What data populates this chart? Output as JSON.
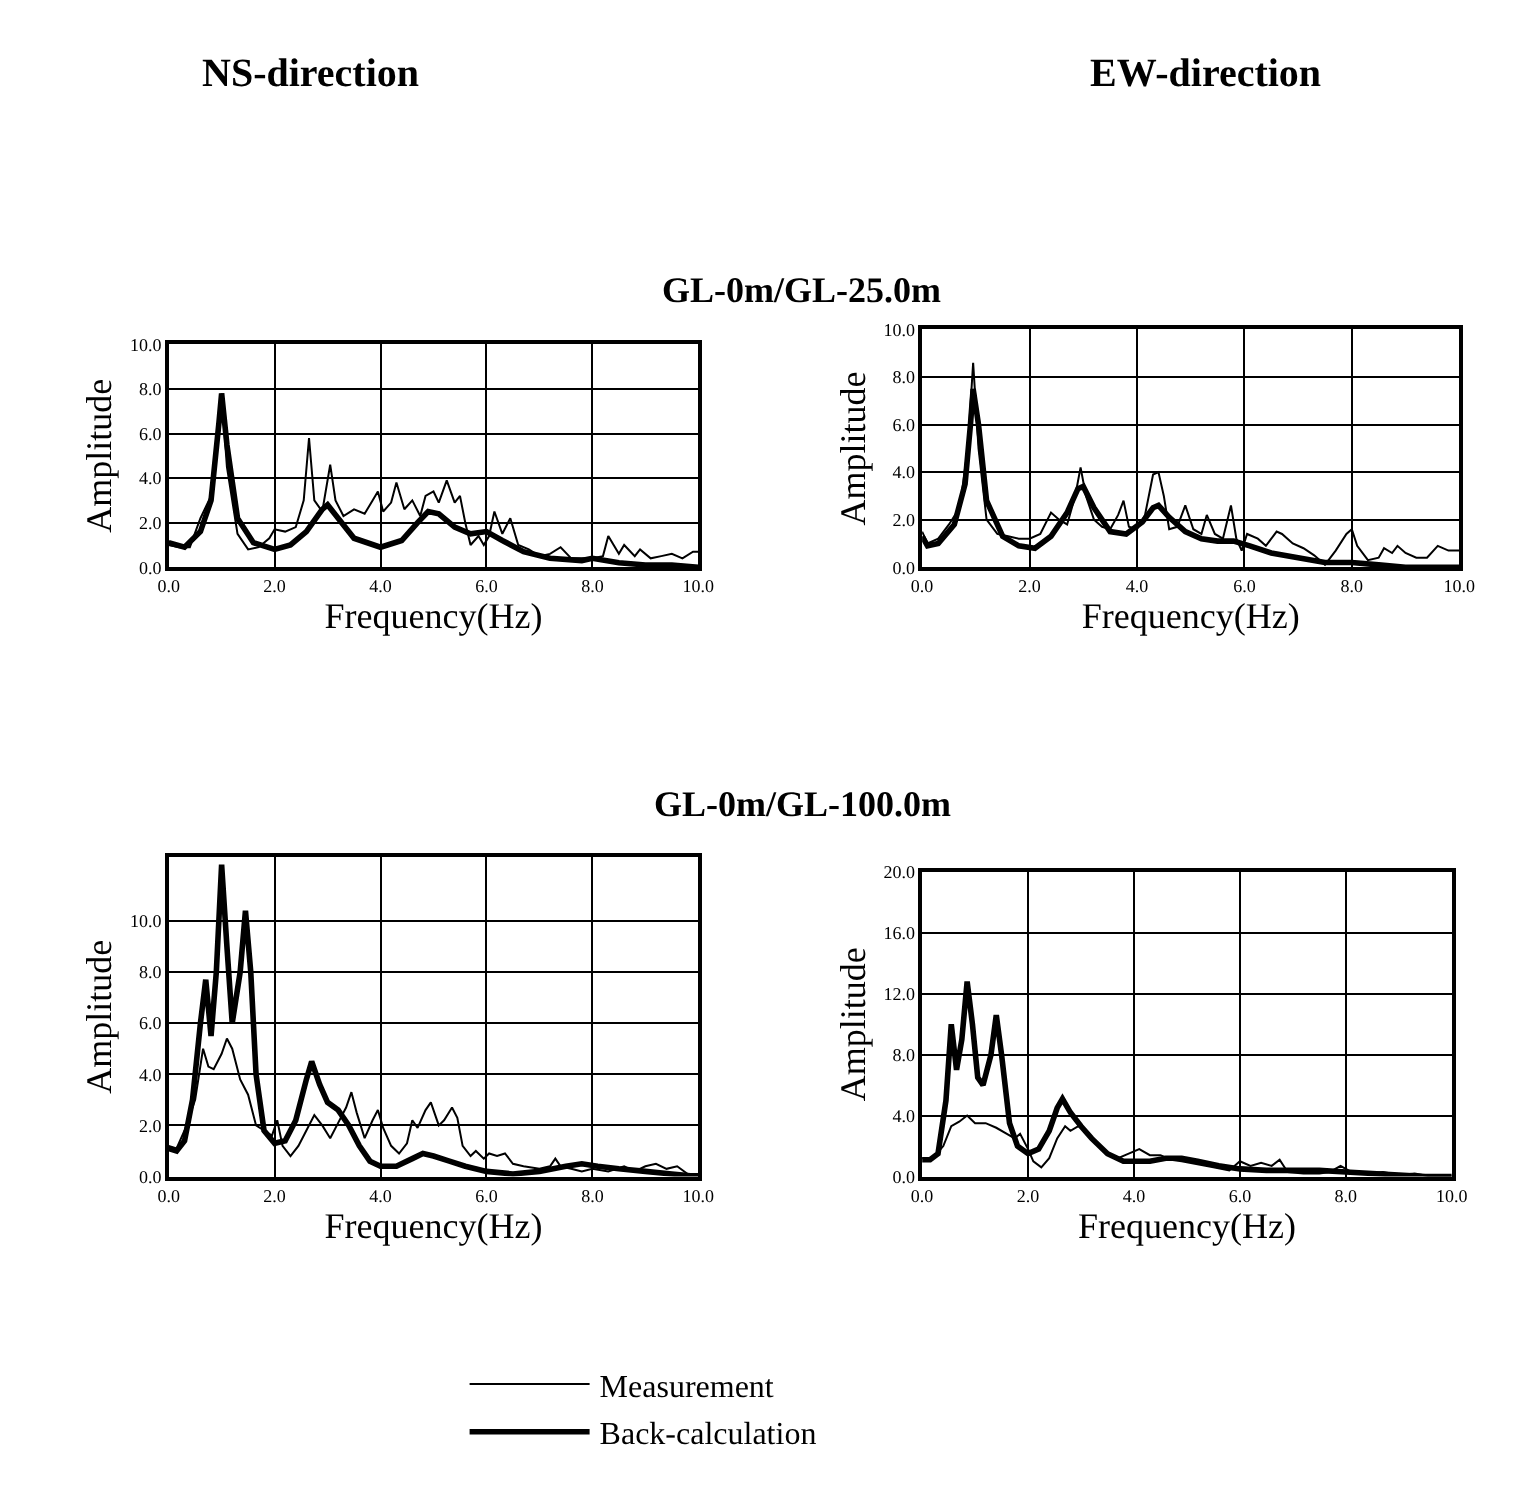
{
  "chart_data": [
    {
      "type": "line",
      "title": "GL-0m/GL-25.0m",
      "annotations": [
        "NS-direction"
      ],
      "xlabel": "Frequency(Hz)",
      "ylabel": "Amplitude",
      "xlim": [
        0,
        10
      ],
      "ylim": [
        0,
        10
      ],
      "xticks": [
        {
          "value": 0,
          "label": "0.0"
        },
        {
          "value": 2,
          "label": "2.0"
        },
        {
          "value": 4,
          "label": "4.0"
        },
        {
          "value": 6,
          "label": "6.0"
        },
        {
          "value": 8,
          "label": "8.0"
        },
        {
          "value": 10,
          "label": "10.0"
        }
      ],
      "yticks": [
        {
          "value": 0,
          "label": "0.0"
        },
        {
          "value": 2,
          "label": "2.0"
        },
        {
          "value": 4,
          "label": "4.0"
        },
        {
          "value": 6,
          "label": "6.0"
        },
        {
          "value": 8,
          "label": "8.0"
        },
        {
          "value": 10,
          "label": "10.0"
        }
      ],
      "grid": true,
      "legend": "bottom",
      "marker": "none",
      "line_style": "solid",
      "series": [
        {
          "name": "Measurement",
          "color": "#000000",
          "x": [
            0.0,
            0.2,
            0.4,
            0.6,
            0.8,
            0.95,
            1.0,
            1.1,
            1.3,
            1.5,
            1.7,
            1.9,
            2.0,
            2.2,
            2.4,
            2.55,
            2.65,
            2.75,
            2.9,
            3.05,
            3.15,
            3.3,
            3.5,
            3.7,
            3.85,
            3.95,
            4.05,
            4.2,
            4.3,
            4.45,
            4.6,
            4.75,
            4.85,
            5.0,
            5.1,
            5.25,
            5.4,
            5.5,
            5.6,
            5.7,
            5.85,
            5.95,
            6.05,
            6.15,
            6.3,
            6.45,
            6.6,
            6.8,
            7.0,
            7.2,
            7.4,
            7.6,
            7.8,
            8.0,
            8.2,
            8.3,
            8.5,
            8.6,
            8.8,
            8.9,
            9.1,
            9.3,
            9.5,
            9.7,
            9.9,
            10.0
          ],
          "values": [
            1.0,
            0.9,
            0.9,
            2.2,
            3.2,
            6.0,
            7.8,
            4.5,
            1.5,
            0.8,
            0.9,
            1.3,
            1.7,
            1.6,
            1.8,
            3.0,
            5.8,
            3.0,
            2.5,
            4.6,
            3.0,
            2.3,
            2.6,
            2.4,
            3.0,
            3.4,
            2.5,
            2.9,
            3.8,
            2.6,
            3.0,
            2.3,
            3.2,
            3.4,
            2.9,
            3.9,
            2.9,
            3.2,
            2.0,
            1.0,
            1.4,
            1.0,
            1.4,
            2.5,
            1.5,
            2.2,
            1.0,
            0.8,
            0.5,
            0.6,
            0.9,
            0.4,
            0.4,
            0.4,
            0.5,
            1.4,
            0.6,
            1.0,
            0.5,
            0.8,
            0.4,
            0.5,
            0.6,
            0.4,
            0.7,
            0.7
          ]
        },
        {
          "name": "Back-calculation",
          "color": "#000000",
          "x": [
            0.0,
            0.3,
            0.6,
            0.8,
            0.95,
            1.0,
            1.1,
            1.3,
            1.6,
            2.0,
            2.3,
            2.6,
            2.9,
            3.0,
            3.2,
            3.5,
            4.0,
            4.4,
            4.7,
            4.9,
            5.1,
            5.4,
            5.7,
            6.0,
            6.3,
            6.7,
            7.2,
            7.8,
            8.0,
            8.5,
            9.0,
            9.5,
            10.0
          ],
          "values": [
            1.1,
            0.9,
            1.6,
            3.0,
            6.5,
            7.8,
            5.5,
            2.2,
            1.1,
            0.8,
            1.0,
            1.6,
            2.6,
            2.8,
            2.2,
            1.3,
            0.9,
            1.2,
            2.0,
            2.5,
            2.4,
            1.8,
            1.5,
            1.6,
            1.2,
            0.7,
            0.4,
            0.3,
            0.4,
            0.2,
            0.1,
            0.1,
            0.0
          ]
        }
      ]
    },
    {
      "type": "line",
      "annotations": [
        "EW-direction"
      ],
      "xlabel": "Frequency(Hz)",
      "ylabel": "Amplitude",
      "xlim": [
        0,
        10
      ],
      "ylim": [
        0,
        10
      ],
      "xticks": [
        {
          "value": 0,
          "label": "0.0"
        },
        {
          "value": 2,
          "label": "2.0"
        },
        {
          "value": 4,
          "label": "4.0"
        },
        {
          "value": 6,
          "label": "6.0"
        },
        {
          "value": 8,
          "label": "8.0"
        },
        {
          "value": 10,
          "label": "10.0"
        }
      ],
      "yticks": [
        {
          "value": 0,
          "label": "0.0"
        },
        {
          "value": 2,
          "label": "2.0"
        },
        {
          "value": 4,
          "label": "4.0"
        },
        {
          "value": 6,
          "label": "6.0"
        },
        {
          "value": 8,
          "label": "8.0"
        },
        {
          "value": 10,
          "label": "10.0"
        }
      ],
      "grid": true,
      "marker": "none",
      "line_style": "solid",
      "series": [
        {
          "color": "#000000",
          "x": [
            0.0,
            0.1,
            0.3,
            0.5,
            0.7,
            0.85,
            0.95,
            1.05,
            1.2,
            1.4,
            1.6,
            1.8,
            2.0,
            2.2,
            2.4,
            2.55,
            2.7,
            2.85,
            2.95,
            3.05,
            3.2,
            3.35,
            3.5,
            3.65,
            3.75,
            3.85,
            4.0,
            4.15,
            4.3,
            4.4,
            4.5,
            4.6,
            4.75,
            4.9,
            5.05,
            5.2,
            5.3,
            5.45,
            5.6,
            5.75,
            5.85,
            5.95,
            6.05,
            6.25,
            6.4,
            6.6,
            6.7,
            6.9,
            7.1,
            7.3,
            7.5,
            7.7,
            7.9,
            8.0,
            8.1,
            8.3,
            8.5,
            8.6,
            8.75,
            8.85,
            9.0,
            9.2,
            9.4,
            9.6,
            9.8,
            10.0
          ],
          "values": [
            1.5,
            1.0,
            1.2,
            1.8,
            2.5,
            5.0,
            8.6,
            5.0,
            2.0,
            1.4,
            1.3,
            1.2,
            1.2,
            1.4,
            2.3,
            2.0,
            1.8,
            3.0,
            4.2,
            3.0,
            2.0,
            1.7,
            1.6,
            2.2,
            2.8,
            1.7,
            1.6,
            2.2,
            3.9,
            4.0,
            3.0,
            1.6,
            1.7,
            2.6,
            1.6,
            1.4,
            2.2,
            1.4,
            1.2,
            2.6,
            1.2,
            0.7,
            1.4,
            1.2,
            0.9,
            1.5,
            1.4,
            1.0,
            0.8,
            0.5,
            0.1,
            0.7,
            1.4,
            1.6,
            0.9,
            0.3,
            0.4,
            0.8,
            0.6,
            0.9,
            0.6,
            0.4,
            0.4,
            0.9,
            0.7,
            0.7
          ]
        },
        {
          "color": "#000000",
          "x": [
            0.0,
            0.1,
            0.3,
            0.6,
            0.8,
            0.9,
            0.95,
            1.05,
            1.2,
            1.5,
            1.8,
            2.1,
            2.4,
            2.7,
            2.9,
            3.0,
            3.2,
            3.5,
            3.8,
            4.1,
            4.3,
            4.4,
            4.6,
            4.9,
            5.2,
            5.5,
            5.8,
            6.1,
            6.5,
            7.0,
            7.5,
            8.0,
            8.5,
            9.0,
            9.5,
            10.0
          ],
          "values": [
            1.3,
            0.9,
            1.0,
            1.8,
            3.5,
            6.0,
            7.5,
            6.0,
            2.8,
            1.3,
            0.9,
            0.8,
            1.3,
            2.3,
            3.3,
            3.4,
            2.5,
            1.5,
            1.4,
            1.9,
            2.5,
            2.6,
            2.1,
            1.5,
            1.2,
            1.1,
            1.1,
            0.9,
            0.6,
            0.4,
            0.2,
            0.2,
            0.1,
            0.0,
            0.0,
            0.0
          ]
        }
      ]
    },
    {
      "type": "line",
      "title": "GL-0m/GL-100.0m",
      "xlabel": "Frequency(Hz)",
      "ylabel": "Amplitude",
      "xlim": [
        0,
        10
      ],
      "ylim": [
        0,
        12.5
      ],
      "xticks": [
        {
          "value": 0,
          "label": "0.0"
        },
        {
          "value": 2,
          "label": "2.0"
        },
        {
          "value": 4,
          "label": "4.0"
        },
        {
          "value": 6,
          "label": "6.0"
        },
        {
          "value": 8,
          "label": "8.0"
        },
        {
          "value": 10,
          "label": "10.0"
        }
      ],
      "yticks": [
        {
          "value": 0,
          "label": "0.0"
        },
        {
          "value": 2,
          "label": "2.0"
        },
        {
          "value": 4,
          "label": "4.0"
        },
        {
          "value": 6,
          "label": "6.0"
        },
        {
          "value": 8,
          "label": "8.0"
        },
        {
          "value": 10,
          "label": "10.0"
        }
      ],
      "grid": true,
      "marker": "none",
      "line_style": "solid",
      "series": [
        {
          "color": "#000000",
          "x": [
            0.0,
            0.15,
            0.3,
            0.5,
            0.65,
            0.75,
            0.85,
            1.0,
            1.1,
            1.2,
            1.35,
            1.5,
            1.65,
            1.8,
            1.95,
            2.05,
            2.15,
            2.3,
            2.45,
            2.6,
            2.75,
            2.9,
            3.05,
            3.2,
            3.35,
            3.45,
            3.55,
            3.7,
            3.85,
            3.95,
            4.05,
            4.2,
            4.35,
            4.5,
            4.6,
            4.7,
            4.85,
            4.95,
            5.1,
            5.2,
            5.35,
            5.45,
            5.55,
            5.7,
            5.8,
            5.95,
            6.05,
            6.2,
            6.35,
            6.5,
            6.7,
            7.0,
            7.2,
            7.3,
            7.4,
            7.6,
            7.8,
            8.0,
            8.3,
            8.6,
            8.8,
            9.0,
            9.2,
            9.4,
            9.6,
            9.8,
            10.0
          ],
          "values": [
            1.2,
            1.1,
            1.8,
            3.0,
            5.0,
            4.3,
            4.2,
            4.8,
            5.4,
            5.0,
            3.8,
            3.2,
            2.0,
            1.8,
            1.6,
            2.2,
            1.2,
            0.8,
            1.2,
            1.8,
            2.4,
            2.0,
            1.5,
            2.1,
            2.7,
            3.3,
            2.5,
            1.5,
            2.2,
            2.6,
            1.9,
            1.2,
            0.9,
            1.3,
            2.2,
            1.9,
            2.6,
            2.9,
            2.0,
            2.2,
            2.7,
            2.3,
            1.2,
            0.8,
            1.0,
            0.7,
            0.9,
            0.8,
            0.9,
            0.5,
            0.4,
            0.3,
            0.4,
            0.7,
            0.4,
            0.3,
            0.2,
            0.3,
            0.2,
            0.4,
            0.2,
            0.4,
            0.5,
            0.3,
            0.4,
            0.1,
            0.1
          ]
        },
        {
          "color": "#000000",
          "x": [
            0.0,
            0.15,
            0.3,
            0.45,
            0.6,
            0.7,
            0.8,
            0.9,
            1.0,
            1.1,
            1.2,
            1.35,
            1.45,
            1.55,
            1.65,
            1.8,
            2.0,
            2.2,
            2.4,
            2.6,
            2.7,
            2.85,
            3.0,
            3.2,
            3.4,
            3.6,
            3.8,
            4.0,
            4.3,
            4.6,
            4.8,
            5.0,
            5.3,
            5.6,
            6.0,
            6.5,
            7.0,
            7.5,
            7.8,
            8.1,
            8.5,
            9.0,
            9.5,
            10.0
          ],
          "values": [
            1.1,
            1.0,
            1.4,
            3.0,
            6.0,
            7.7,
            5.5,
            8.0,
            12.2,
            9.0,
            6.0,
            8.0,
            10.4,
            8.0,
            4.0,
            1.8,
            1.3,
            1.4,
            2.2,
            3.8,
            4.5,
            3.6,
            2.9,
            2.6,
            2.0,
            1.2,
            0.6,
            0.4,
            0.4,
            0.7,
            0.9,
            0.8,
            0.6,
            0.4,
            0.2,
            0.1,
            0.2,
            0.4,
            0.5,
            0.4,
            0.3,
            0.2,
            0.1,
            0.0
          ]
        }
      ]
    },
    {
      "type": "line",
      "xlabel": "Frequency(Hz)",
      "ylabel": "Amplitude",
      "xlim": [
        0,
        10
      ],
      "ylim": [
        0,
        20
      ],
      "xticks": [
        {
          "value": 0,
          "label": "0.0"
        },
        {
          "value": 2,
          "label": "2.0"
        },
        {
          "value": 4,
          "label": "4.0"
        },
        {
          "value": 6,
          "label": "6.0"
        },
        {
          "value": 8,
          "label": "8.0"
        },
        {
          "value": 10,
          "label": "10.0"
        }
      ],
      "yticks": [
        {
          "value": 0,
          "label": "0.0"
        },
        {
          "value": 4,
          "label": "4.0"
        },
        {
          "value": 8,
          "label": "8.0"
        },
        {
          "value": 12,
          "label": "12.0"
        },
        {
          "value": 16,
          "label": "16.0"
        },
        {
          "value": 20,
          "label": "20.0"
        }
      ],
      "grid": true,
      "marker": "none",
      "line_style": "solid",
      "series": [
        {
          "color": "#000000",
          "x": [
            0.0,
            0.2,
            0.4,
            0.55,
            0.7,
            0.85,
            1.0,
            1.2,
            1.4,
            1.6,
            1.75,
            1.85,
            2.0,
            2.1,
            2.25,
            2.4,
            2.55,
            2.7,
            2.8,
            2.95,
            3.1,
            3.3,
            3.5,
            3.7,
            3.9,
            4.1,
            4.3,
            4.5,
            4.7,
            4.9,
            5.2,
            5.5,
            5.8,
            6.0,
            6.2,
            6.4,
            6.6,
            6.75,
            6.9,
            7.2,
            7.5,
            7.7,
            7.9,
            8.1,
            8.4,
            8.7,
            9.0,
            9.3,
            9.6,
            10.0
          ],
          "values": [
            1.2,
            1.2,
            2.0,
            3.3,
            3.6,
            4.0,
            3.5,
            3.5,
            3.2,
            2.8,
            2.5,
            2.8,
            1.8,
            1.0,
            0.6,
            1.2,
            2.5,
            3.3,
            3.0,
            3.3,
            3.0,
            2.2,
            1.5,
            1.2,
            1.5,
            1.8,
            1.4,
            1.4,
            1.1,
            1.0,
            0.8,
            0.6,
            0.4,
            1.0,
            0.7,
            0.9,
            0.7,
            1.1,
            0.3,
            0.2,
            0.2,
            0.3,
            0.7,
            0.3,
            0.2,
            0.3,
            0.1,
            0.2,
            0.0,
            0.0
          ]
        },
        {
          "color": "#000000",
          "x": [
            0.0,
            0.15,
            0.3,
            0.45,
            0.55,
            0.65,
            0.75,
            0.85,
            0.95,
            1.05,
            1.15,
            1.3,
            1.4,
            1.5,
            1.65,
            1.8,
            2.0,
            2.2,
            2.4,
            2.55,
            2.65,
            2.8,
            3.0,
            3.2,
            3.5,
            3.8,
            4.0,
            4.3,
            4.6,
            4.9,
            5.2,
            5.6,
            6.0,
            6.5,
            7.0,
            7.5,
            8.0,
            8.5,
            9.0,
            9.5,
            10.0
          ],
          "values": [
            1.1,
            1.1,
            1.5,
            5.0,
            10.0,
            7.0,
            9.0,
            12.8,
            10.0,
            6.5,
            6.0,
            8.0,
            10.6,
            8.0,
            3.5,
            2.0,
            1.5,
            1.8,
            3.0,
            4.5,
            5.1,
            4.2,
            3.3,
            2.5,
            1.5,
            1.0,
            1.0,
            1.0,
            1.2,
            1.2,
            1.0,
            0.7,
            0.5,
            0.4,
            0.4,
            0.4,
            0.3,
            0.2,
            0.1,
            0.0,
            0.0
          ]
        }
      ]
    }
  ]
}
